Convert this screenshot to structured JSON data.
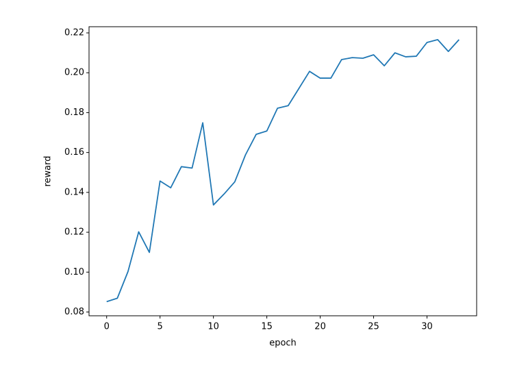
{
  "chart_data": {
    "type": "line",
    "xlabel": "epoch",
    "ylabel": "reward",
    "x": [
      0,
      1,
      2,
      3,
      4,
      5,
      6,
      7,
      8,
      9,
      10,
      11,
      12,
      13,
      14,
      15,
      16,
      17,
      18,
      19,
      20,
      21,
      22,
      23,
      24,
      25,
      26,
      27,
      28,
      29,
      30,
      31,
      32,
      33
    ],
    "series": [
      {
        "color": "#1f77b4",
        "values": [
          0.0852,
          0.0869,
          0.1003,
          0.1202,
          0.1099,
          0.1457,
          0.1423,
          0.1529,
          0.1522,
          0.1749,
          0.1337,
          0.1392,
          0.1453,
          0.1588,
          0.1691,
          0.1708,
          0.1822,
          0.1835,
          0.1921,
          0.2007,
          0.1973,
          0.1973,
          0.2066,
          0.2076,
          0.2073,
          0.209,
          0.2035,
          0.21,
          0.208,
          0.2083,
          0.2152,
          0.2166,
          0.2107,
          0.2166
        ]
      }
    ],
    "xlim": [
      -1.65,
      34.65
    ],
    "xticks": [
      0,
      5,
      10,
      15,
      20,
      25,
      30
    ],
    "ylim": [
      0.0781,
      0.2231
    ],
    "yticks": [
      0.08,
      {
        "value": 0.1,
        "label": "0.10"
      },
      0.12,
      0.14,
      0.16,
      0.18,
      {
        "value": 0.2,
        "label": "0.20"
      },
      0.22
    ]
  }
}
